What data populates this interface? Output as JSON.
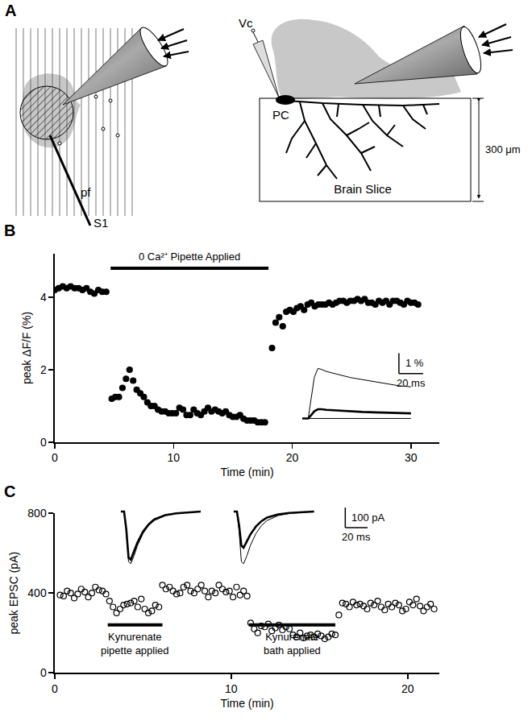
{
  "diagram": {
    "panel": "A",
    "labels": {
      "fibers": "pf",
      "stimulator": "S1",
      "electrode": "Vc",
      "cell": "PC",
      "thickness": "300 μm",
      "slice": "Brain Slice"
    }
  },
  "chart_data": [
    {
      "panel": "B",
      "type": "scatter",
      "x_label": "Time (min)",
      "y_label": "peak ΔF/F (%)",
      "xlim": [
        0,
        32.4
      ],
      "xticks": [
        0,
        10,
        20,
        30
      ],
      "ylim": [
        0,
        5.2
      ],
      "yticks": [
        0,
        2,
        4
      ],
      "grid": false,
      "marker": "circle",
      "color": "#000000",
      "x": [
        0.0,
        0.33,
        0.67,
        1.0,
        1.33,
        1.67,
        2.0,
        2.33,
        2.67,
        3.0,
        3.33,
        3.67,
        4.0,
        4.33,
        4.8,
        5.1,
        5.4,
        5.7,
        6.0,
        6.3,
        6.6,
        6.9,
        7.2,
        7.5,
        7.8,
        8.1,
        8.4,
        8.7,
        9.0,
        9.3,
        9.6,
        9.9,
        10.2,
        10.5,
        10.8,
        11.1,
        11.4,
        11.7,
        12.0,
        12.3,
        12.6,
        12.9,
        13.2,
        13.5,
        13.8,
        14.1,
        14.4,
        14.7,
        15.0,
        15.3,
        15.6,
        15.9,
        16.2,
        16.5,
        16.8,
        17.1,
        17.4,
        17.7,
        18.3,
        18.6,
        18.9,
        19.2,
        19.5,
        19.8,
        20.1,
        20.4,
        20.7,
        21.0,
        21.3,
        21.6,
        21.9,
        22.2,
        22.5,
        22.8,
        23.1,
        23.4,
        23.7,
        24.0,
        24.3,
        24.6,
        24.9,
        25.2,
        25.5,
        25.8,
        26.1,
        26.4,
        26.7,
        27.0,
        27.3,
        27.6,
        27.9,
        28.2,
        28.5,
        28.8,
        29.1,
        29.4,
        29.7,
        30.0,
        30.3,
        30.6
      ],
      "values": [
        4.2,
        4.25,
        4.3,
        4.25,
        4.3,
        4.25,
        4.25,
        4.2,
        4.25,
        4.15,
        4.1,
        4.2,
        4.15,
        4.15,
        1.2,
        1.25,
        1.25,
        1.5,
        1.75,
        2.0,
        1.7,
        1.45,
        1.35,
        1.25,
        1.1,
        1.0,
        1.0,
        0.9,
        0.85,
        0.85,
        0.8,
        0.8,
        0.8,
        0.95,
        0.9,
        0.75,
        0.75,
        0.9,
        0.8,
        0.75,
        0.85,
        0.95,
        0.85,
        0.9,
        0.85,
        0.8,
        0.85,
        0.75,
        0.7,
        0.7,
        0.75,
        0.65,
        0.6,
        0.6,
        0.6,
        0.55,
        0.55,
        0.55,
        2.6,
        3.3,
        3.45,
        3.2,
        3.6,
        3.65,
        3.6,
        3.7,
        3.75,
        3.65,
        3.8,
        3.85,
        3.75,
        3.8,
        3.8,
        3.8,
        3.85,
        3.8,
        3.85,
        3.9,
        3.9,
        3.85,
        3.9,
        3.9,
        3.95,
        3.9,
        3.95,
        3.85,
        3.85,
        3.8,
        3.9,
        3.85,
        3.9,
        3.8,
        3.9,
        3.9,
        3.85,
        3.8,
        3.9,
        3.85,
        3.85,
        3.8
      ],
      "annotations": [
        {
          "text": "0 Ca²⁺ Pipette Applied",
          "x": [
            4.7,
            18.0
          ],
          "y": 4.8
        }
      ],
      "insets": [
        {
          "type": "line",
          "color": "#000000",
          "xlim": [
            0,
            110
          ],
          "ylim": [
            -0.1,
            3.2
          ],
          "series": [
            {
              "line_style": "thin",
              "x": [
                0,
                5,
                8,
                10,
                13,
                16,
                20,
                30,
                40,
                50,
                60,
                70,
                80,
                90
              ],
              "values": [
                0,
                0,
                1.2,
                2.0,
                2.45,
                2.4,
                2.3,
                2.15,
                2.0,
                1.9,
                1.8,
                1.7,
                1.6,
                1.55
              ]
            },
            {
              "line_style": "thick",
              "x": [
                0,
                5,
                8,
                10,
                13,
                16,
                20,
                30,
                40,
                50,
                60,
                70,
                80,
                90
              ],
              "values": [
                0,
                0,
                0.2,
                0.35,
                0.45,
                0.45,
                0.42,
                0.38,
                0.35,
                0.32,
                0.3,
                0.28,
                0.26,
                0.25
              ]
            },
            {
              "line_style": "thin",
              "x": [
                0,
                90
              ],
              "values": [
                0,
                0
              ]
            }
          ],
          "scale_bar": {
            "x": 20,
            "x_label": "20 ms",
            "y": 1,
            "y_label": "1 %"
          }
        }
      ]
    },
    {
      "panel": "C",
      "type": "scatter",
      "x_label": "Time (min)",
      "y_label": "peak EPSC (pA)",
      "xlim": [
        0,
        21.8
      ],
      "xticks": [
        0,
        10,
        20
      ],
      "ylim": [
        0,
        800
      ],
      "yticks": [
        0,
        400,
        800
      ],
      "grid": false,
      "marker": "circle-open",
      "color": "#000000",
      "x": [
        0.3,
        0.5,
        0.7,
        0.9,
        1.1,
        1.3,
        1.5,
        1.7,
        1.9,
        2.1,
        2.3,
        2.5,
        2.7,
        2.9,
        3.1,
        3.3,
        3.5,
        3.7,
        3.9,
        4.1,
        4.3,
        4.5,
        4.7,
        4.9,
        5.1,
        5.3,
        5.5,
        5.7,
        5.9,
        6.1,
        6.3,
        6.5,
        6.7,
        6.9,
        7.1,
        7.3,
        7.5,
        7.7,
        7.9,
        8.1,
        8.3,
        8.5,
        8.7,
        8.9,
        9.1,
        9.3,
        9.5,
        9.7,
        9.9,
        10.1,
        10.3,
        10.5,
        10.7,
        10.9,
        11.1,
        11.3,
        11.5,
        11.7,
        11.9,
        12.1,
        12.3,
        12.5,
        12.7,
        12.9,
        13.1,
        13.3,
        13.5,
        13.7,
        13.9,
        14.1,
        14.3,
        14.5,
        14.7,
        14.9,
        15.1,
        15.3,
        15.5,
        15.7,
        15.9,
        16.1,
        16.3,
        16.5,
        16.7,
        16.9,
        17.1,
        17.3,
        17.5,
        17.7,
        17.9,
        18.1,
        18.3,
        18.5,
        18.7,
        18.9,
        19.1,
        19.3,
        19.5,
        19.7,
        19.9,
        20.1,
        20.3,
        20.5,
        20.7,
        20.9,
        21.1,
        21.3,
        21.5
      ],
      "values": [
        390,
        385,
        410,
        400,
        375,
        395,
        420,
        405,
        380,
        400,
        430,
        415,
        410,
        395,
        360,
        330,
        300,
        320,
        340,
        345,
        350,
        360,
        330,
        370,
        320,
        300,
        310,
        340,
        330,
        440,
        420,
        430,
        410,
        395,
        400,
        430,
        440,
        410,
        400,
        420,
        440,
        410,
        380,
        410,
        400,
        440,
        420,
        405,
        410,
        380,
        430,
        390,
        410,
        385,
        250,
        220,
        200,
        235,
        230,
        245,
        210,
        225,
        240,
        215,
        230,
        220,
        190,
        180,
        200,
        175,
        185,
        190,
        180,
        195,
        185,
        170,
        180,
        195,
        190,
        290,
        350,
        345,
        330,
        355,
        340,
        345,
        335,
        320,
        350,
        340,
        360,
        330,
        315,
        345,
        330,
        350,
        340,
        310,
        320,
        355,
        340,
        370,
        335,
        310,
        330,
        345,
        320
      ],
      "annotations": [
        {
          "text": [
            "Kynurenate",
            "pipette applied"
          ],
          "x": [
            3.0,
            6.1
          ],
          "y": 240
        },
        {
          "text": [
            "Kynurenate",
            "bath applied"
          ],
          "x": [
            11.0,
            15.9
          ],
          "y": 240
        }
      ],
      "insets": [
        {
          "type": "line",
          "color": "#000000",
          "xlim": [
            0,
            80
          ],
          "ylim": [
            -280,
            20
          ],
          "series": [
            {
              "line_style": "thin",
              "x": [
                0,
                3,
                5,
                7,
                9,
                12,
                15,
                20,
                25,
                30,
                40,
                50,
                60,
                72
              ],
              "values": [
                0,
                0,
                -100,
                -250,
                -260,
                -220,
                -170,
                -110,
                -70,
                -45,
                -20,
                -10,
                -5,
                0
              ]
            },
            {
              "line_style": "thick",
              "x": [
                0,
                3,
                5,
                7,
                9,
                12,
                15,
                20,
                25,
                30,
                40,
                50,
                60,
                72
              ],
              "values": [
                0,
                0,
                -90,
                -230,
                -240,
                -200,
                -155,
                -100,
                -65,
                -40,
                -18,
                -9,
                -4,
                0
              ]
            }
          ]
        },
        {
          "type": "line",
          "color": "#000000",
          "xlim": [
            0,
            130
          ],
          "ylim": [
            -280,
            20
          ],
          "series": [
            {
              "line_style": "thin",
              "x": [
                0,
                3,
                5,
                7,
                9,
                12,
                15,
                20,
                25,
                30,
                40,
                50,
                60,
                72
              ],
              "values": [
                0,
                0,
                -100,
                -250,
                -260,
                -220,
                -170,
                -110,
                -70,
                -45,
                -20,
                -10,
                -5,
                0
              ]
            },
            {
              "line_style": "thick",
              "x": [
                0,
                3,
                5,
                7,
                9,
                12,
                15,
                20,
                25,
                30,
                40,
                50,
                60,
                72
              ],
              "values": [
                0,
                0,
                -70,
                -170,
                -180,
                -150,
                -115,
                -75,
                -48,
                -30,
                -14,
                -7,
                -3,
                0
              ]
            }
          ],
          "scale_bar": {
            "x": 20,
            "x_label": "20 ms",
            "y": 100,
            "y_label": "100 pA"
          }
        }
      ]
    }
  ]
}
